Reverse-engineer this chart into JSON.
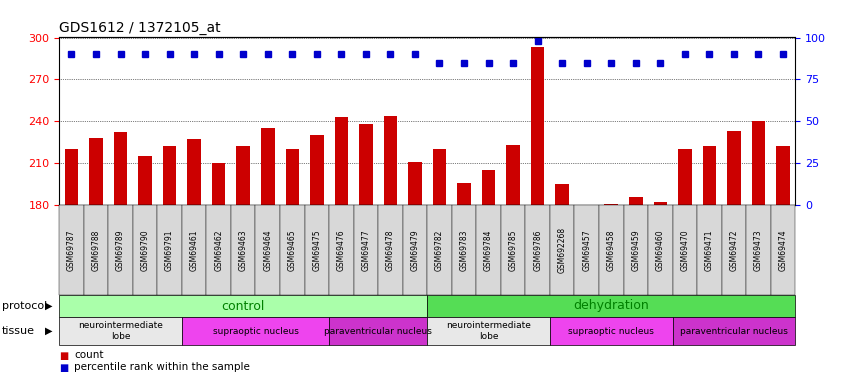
{
  "title": "GDS1612 / 1372105_at",
  "samples": [
    "GSM69787",
    "GSM69788",
    "GSM69789",
    "GSM69790",
    "GSM69791",
    "GSM69461",
    "GSM69462",
    "GSM69463",
    "GSM69464",
    "GSM69465",
    "GSM69475",
    "GSM69476",
    "GSM69477",
    "GSM69478",
    "GSM69479",
    "GSM69782",
    "GSM69783",
    "GSM69784",
    "GSM69785",
    "GSM69786",
    "GSM692268",
    "GSM69457",
    "GSM69458",
    "GSM69459",
    "GSM69460",
    "GSM69470",
    "GSM69471",
    "GSM69472",
    "GSM69473",
    "GSM69474"
  ],
  "counts": [
    220,
    228,
    232,
    215,
    222,
    227,
    210,
    222,
    235,
    220,
    230,
    243,
    238,
    244,
    211,
    220,
    196,
    205,
    223,
    293,
    195,
    178,
    181,
    186,
    182,
    220,
    222,
    233,
    240,
    222
  ],
  "percentile": [
    90,
    90,
    90,
    90,
    90,
    90,
    90,
    90,
    90,
    90,
    90,
    90,
    90,
    90,
    90,
    85,
    85,
    85,
    85,
    98,
    85,
    85,
    85,
    85,
    85,
    90,
    90,
    90,
    90,
    90
  ],
  "ylim_left": [
    180,
    300
  ],
  "yticks_left": [
    180,
    210,
    240,
    270,
    300
  ],
  "yticks_right": [
    0,
    25,
    50,
    75,
    100
  ],
  "bar_color": "#cc0000",
  "dot_color": "#0000cc",
  "protocol_groups": [
    {
      "label": "control",
      "start": 0,
      "end": 14,
      "color": "#aaffaa"
    },
    {
      "label": "dehydration",
      "start": 15,
      "end": 29,
      "color": "#55dd55"
    }
  ],
  "tissue_groups": [
    {
      "label": "neurointermediate\nlobe",
      "start": 0,
      "end": 4,
      "color": "#e8e8e8"
    },
    {
      "label": "supraoptic nucleus",
      "start": 5,
      "end": 10,
      "color": "#ee44ee"
    },
    {
      "label": "paraventricular nucleus",
      "start": 11,
      "end": 14,
      "color": "#cc33cc"
    },
    {
      "label": "neurointermediate\nlobe",
      "start": 15,
      "end": 19,
      "color": "#e8e8e8"
    },
    {
      "label": "supraoptic nucleus",
      "start": 20,
      "end": 24,
      "color": "#ee44ee"
    },
    {
      "label": "paraventricular nucleus",
      "start": 25,
      "end": 29,
      "color": "#cc33cc"
    }
  ]
}
